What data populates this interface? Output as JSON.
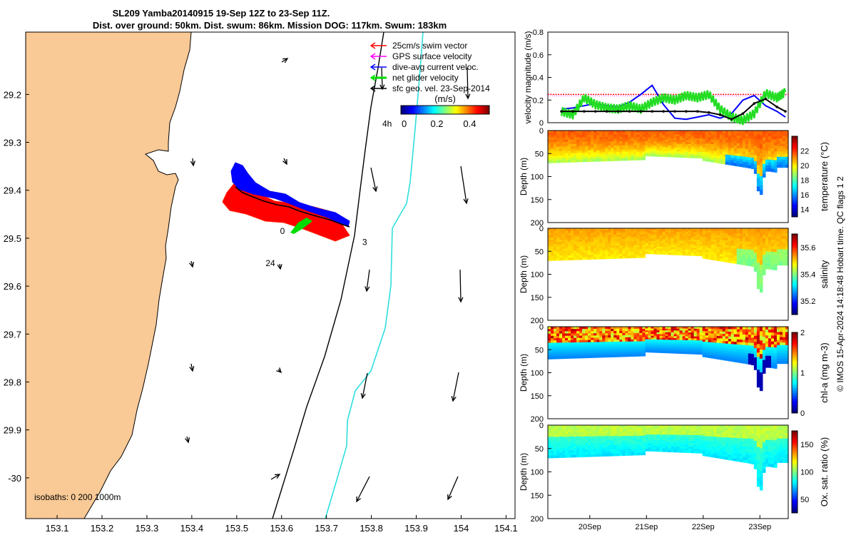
{
  "title": {
    "line1": "SL209 Yamba20140915 19-Sep 12Z to 23-Sep 11Z.",
    "line2": "Dist. over ground: 50km. Dist. swum: 86km. Mission DOG: 117km. Swum: 183km"
  },
  "map": {
    "xticks": [
      "153.1",
      "153.2",
      "153.3",
      "153.4",
      "153.5",
      "153.6",
      "153.7",
      "153.8",
      "153.9",
      "154",
      "154.1"
    ],
    "yticks": [
      "29.2",
      "29.3",
      "29.4",
      "29.5",
      "29.6",
      "29.7",
      "29.8",
      "29.9",
      "-30"
    ],
    "xlim": [
      153.03,
      154.12
    ],
    "ylim": [
      -30.085,
      -29.07
    ],
    "land_color": "#f9c996",
    "legend": [
      {
        "label": "25cm/s swim vector",
        "color": "#ff0000"
      },
      {
        "label": "GPS surface velocity",
        "color": "#ff00ff"
      },
      {
        "label": "dive-avg current veloc.",
        "color": "#0000ff"
      },
      {
        "label": "net glider velocity",
        "color": "#00dd00"
      },
      {
        "label": "sfc geo. vel. 23-Sep-2014",
        "color": "#000000"
      }
    ],
    "colorbar_unit": "(m/s)",
    "colorbar_ticks": [
      "0",
      "0.2",
      "0.4"
    ],
    "colorbar_range": [
      -0.02,
      0.52
    ],
    "annotations": [
      {
        "text": "4h",
        "lon": 153.835,
        "lat": -29.267
      },
      {
        "text": "0",
        "lon": 153.602,
        "lat": -29.491
      },
      {
        "text": "3",
        "lon": 153.785,
        "lat": -29.514
      },
      {
        "text": "24",
        "lon": 153.575,
        "lat": -29.558
      }
    ],
    "isobaths_label": "isobaths: 0   200  1000m"
  },
  "velocity_panel": {
    "ylabel": "velocity magnitude (m/s)",
    "yticks": [
      "0",
      "0.2",
      "0.4",
      "0.6",
      "0.8"
    ],
    "ylim": [
      0,
      0.8
    ],
    "swim_reference": 0.25
  },
  "sections": [
    {
      "label": "temperature (°C)",
      "ticks": [
        "14",
        "16",
        "18",
        "20",
        "22"
      ],
      "range": [
        13,
        24
      ]
    },
    {
      "label": "salinity",
      "ticks": [
        "35.2",
        "35.4",
        "35.6"
      ],
      "range": [
        35.1,
        35.7
      ]
    },
    {
      "label": "chl-a (mg m-3)",
      "ticks": [
        "0",
        "1",
        "2"
      ],
      "range": [
        0,
        2
      ]
    },
    {
      "label": "Ox. sat. ratio (%)",
      "ticks": [
        "50",
        "100",
        "150"
      ],
      "range": [
        25,
        175
      ]
    }
  ],
  "depth_axis": {
    "label": "Depth (m)",
    "ticks": [
      "0",
      "50",
      "100",
      "150",
      "200"
    ],
    "range": [
      0,
      200
    ]
  },
  "time_axis": {
    "ticks": [
      "20Sep",
      "21Sep",
      "22Sep",
      "23Sep"
    ]
  },
  "footer": "© IMOS 15-Apr-2024 14:18:48 Hobart time. QC flags 1  2",
  "chart_data": {
    "type": "line",
    "title": "SL209 Yamba20140915 19-Sep 12Z to 23-Sep 11Z.",
    "xlabel": "",
    "ylabel": "velocity magnitude (m/s)",
    "time_days": [
      19.5,
      19.7,
      19.9,
      20.1,
      20.3,
      20.5,
      20.7,
      20.9,
      21.1,
      21.3,
      21.5,
      21.7,
      21.9,
      22.1,
      22.3,
      22.5,
      22.7,
      22.9,
      23.1,
      23.3,
      23.45
    ],
    "series": [
      {
        "name": "dive-avg current veloc.",
        "values": [
          0.12,
          0.13,
          0.15,
          0.17,
          0.15,
          0.14,
          0.18,
          0.25,
          0.33,
          0.16,
          0.04,
          0.03,
          0.05,
          0.07,
          0.04,
          0.08,
          0.2,
          0.24,
          0.15,
          0.1,
          0.05
        ]
      },
      {
        "name": "net glider velocity",
        "values": [
          0.1,
          0.07,
          0.22,
          0.16,
          0.13,
          0.12,
          0.15,
          0.12,
          0.18,
          0.22,
          0.2,
          0.24,
          0.22,
          0.25,
          0.12,
          0.05,
          0.02,
          0.08,
          0.26,
          0.22,
          0.27
        ]
      },
      {
        "name": "sfc geo. vel. 23-Sep-2014",
        "values": [
          0.1,
          0.1,
          0.1,
          0.1,
          0.1,
          0.1,
          0.1,
          0.1,
          0.1,
          0.1,
          0.1,
          0.1,
          0.1,
          0.09,
          0.07,
          0.03,
          0.08,
          0.17,
          0.21,
          0.14,
          0.1
        ]
      }
    ]
  }
}
